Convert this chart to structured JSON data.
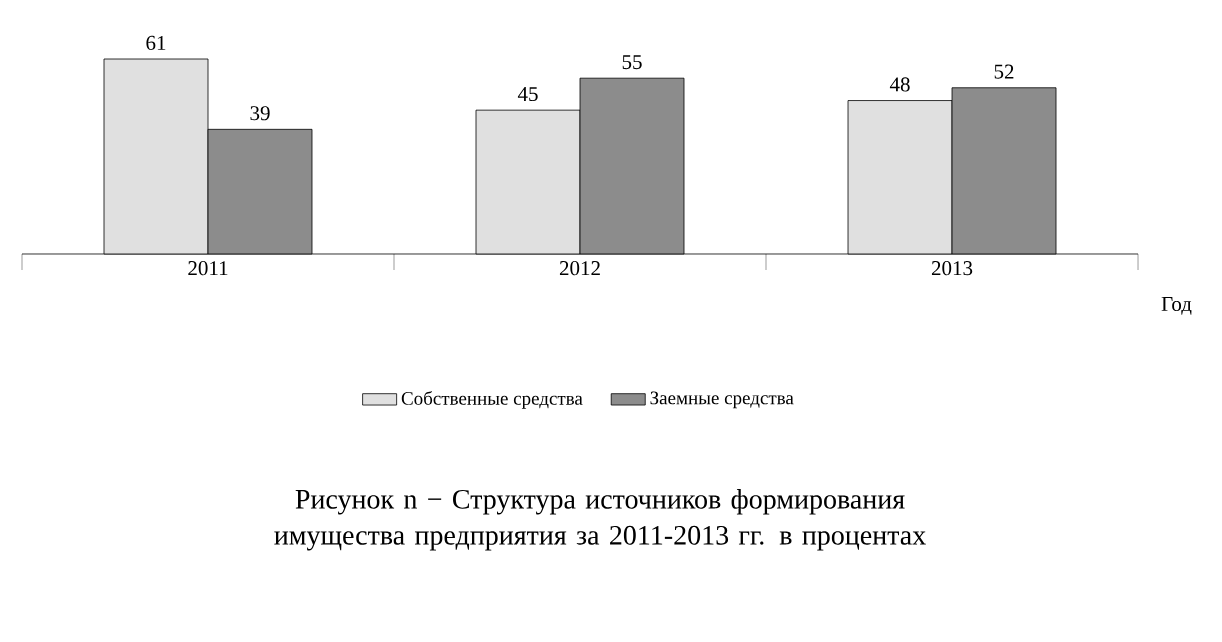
{
  "chart_data": {
    "type": "bar",
    "categories": [
      "2011",
      "2012",
      "2013"
    ],
    "series": [
      {
        "name": "Собственные средства",
        "color": "#e0e0e0",
        "values": [
          61,
          45,
          48
        ]
      },
      {
        "name": "Заемные средства",
        "color": "#8c8c8c",
        "values": [
          39,
          55,
          52
        ]
      }
    ],
    "xlabel": "Год",
    "data_labels": true,
    "legend": "bottom",
    "annotations": [
      "Рисунок n − Структура источников формирования имущества предприятия  за 2011-2013  гг. в процентах"
    ]
  }
}
